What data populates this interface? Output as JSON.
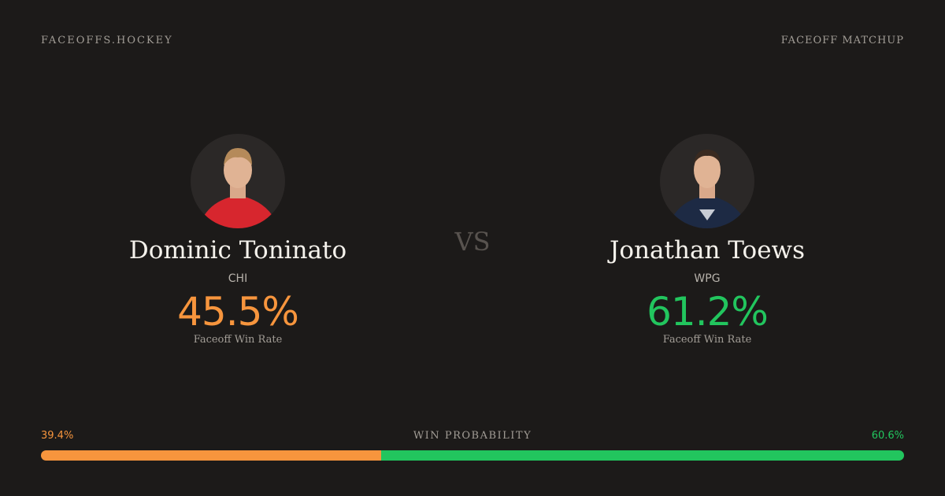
{
  "header": {
    "site": "FACEOFFS.HOCKEY",
    "label": "FACEOFF MATCHUP"
  },
  "versus": "VS",
  "players": [
    {
      "name": "Dominic Toninato",
      "team": "CHI",
      "win_rate": "45.5%",
      "rate_label": "Faceoff Win Rate",
      "color": "#f7953d"
    },
    {
      "name": "Jonathan Toews",
      "team": "WPG",
      "win_rate": "61.2%",
      "rate_label": "Faceoff Win Rate",
      "color": "#22c55e"
    }
  ],
  "probability": {
    "label": "WIN PROBABILITY",
    "values": [
      39.4,
      60.6
    ],
    "value_labels": [
      "39.4%",
      "60.6%"
    ]
  }
}
